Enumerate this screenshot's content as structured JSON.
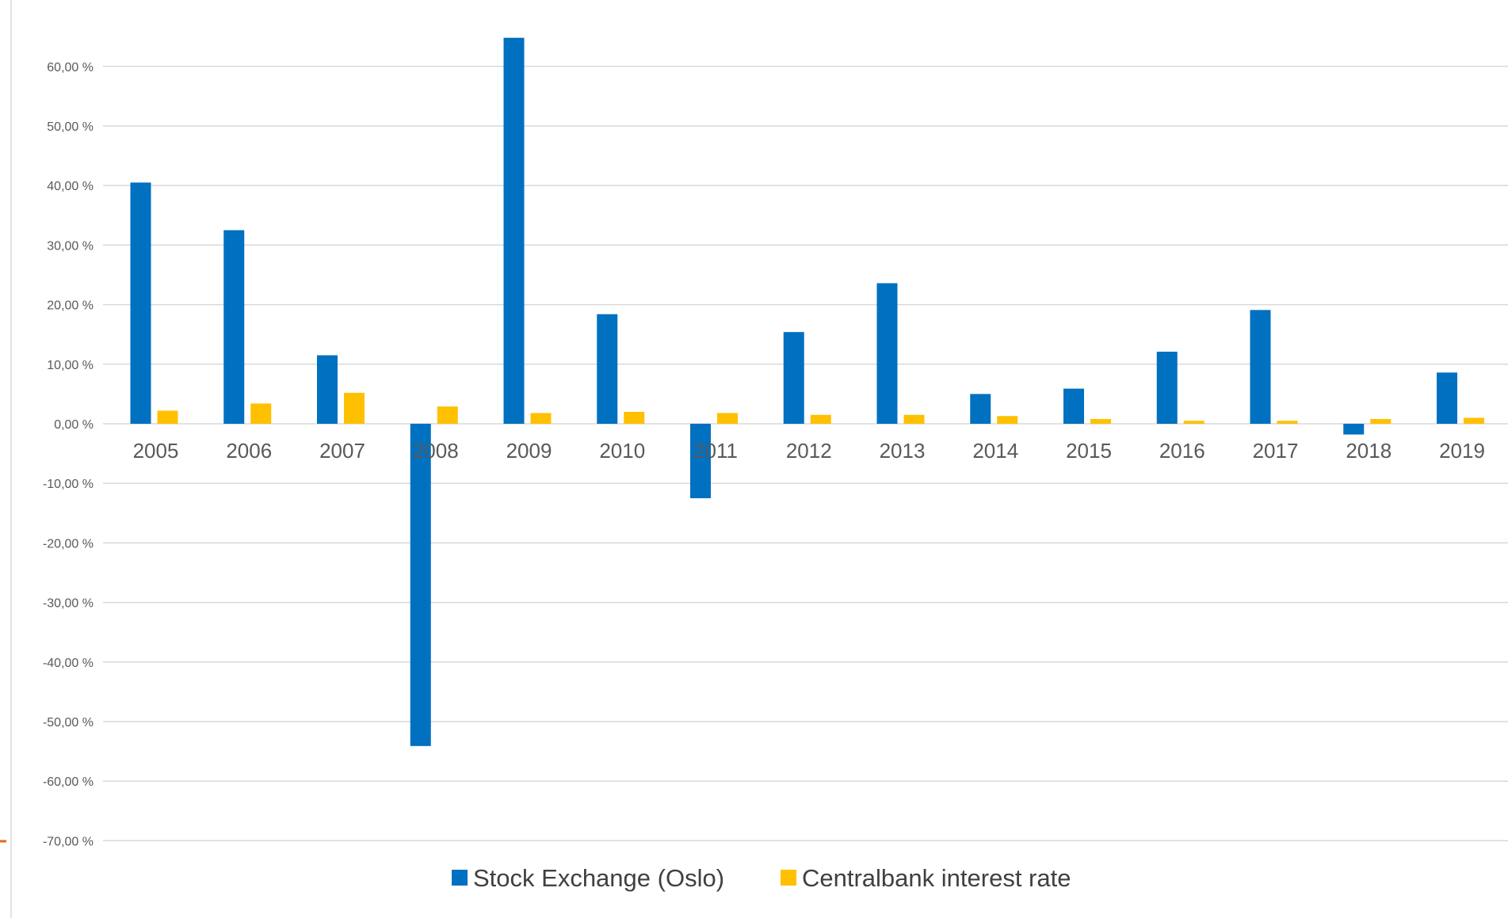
{
  "chart_data": {
    "type": "bar",
    "categories": [
      "2005",
      "2006",
      "2007",
      "2008",
      "2009",
      "2010",
      "2011",
      "2012",
      "2013",
      "2014",
      "2015",
      "2016",
      "2017",
      "2018",
      "2019"
    ],
    "series": [
      {
        "name": "Stock Exchange (Oslo)",
        "color": "#0070C0",
        "values": [
          40.5,
          32.5,
          11.5,
          -54.1,
          64.8,
          18.4,
          -12.5,
          15.4,
          23.6,
          5.0,
          5.9,
          12.1,
          19.1,
          -1.8,
          8.6
        ]
      },
      {
        "name": "Centralbank interest rate",
        "color": "#FFC000",
        "values": [
          2.2,
          3.4,
          5.2,
          2.9,
          1.8,
          2.0,
          1.8,
          1.5,
          1.5,
          1.3,
          0.8,
          0.5,
          0.5,
          0.8,
          1.0
        ]
      }
    ],
    "y_ticks": [
      "60,00 %",
      "50,00 %",
      "40,00 %",
      "30,00 %",
      "20,00 %",
      "10,00 %",
      "0,00 %",
      "-10,00 %",
      "-20,00 %",
      "-30,00 %",
      "-40,00 %",
      "-50,00 %",
      "-60,00 %",
      "-70,00 %"
    ],
    "ylim": [
      -70,
      70
    ],
    "grid": true,
    "legend": "bottom-center",
    "title": "",
    "xlabel": "",
    "ylabel": ""
  }
}
